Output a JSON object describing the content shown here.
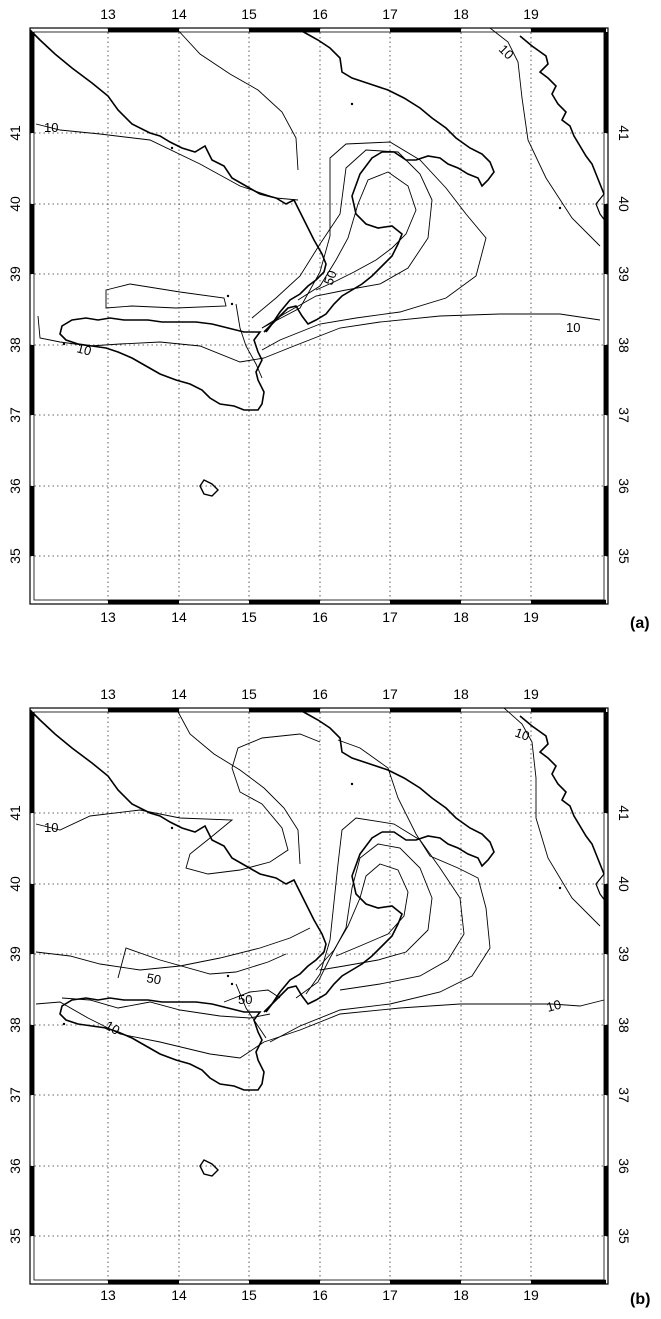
{
  "colors": {
    "ink": "#000000",
    "grid": "#333333",
    "background": "#ffffff"
  },
  "lon_ticks": [
    "13",
    "14",
    "15",
    "16",
    "17",
    "18",
    "19"
  ],
  "lat_ticks": [
    "41",
    "40",
    "39",
    "38",
    "37",
    "36",
    "35"
  ],
  "panels": [
    {
      "panel_label": "(a)",
      "contour_labels": {
        "c10_nw": "10",
        "c10_ne": "10",
        "c10_e": "10",
        "c10_sw": "10",
        "c50": "50"
      }
    },
    {
      "panel_label": "(b)",
      "contour_labels": {
        "c10_nw": "10",
        "c10_ne": "10",
        "c10_e": "10",
        "c10_sw": "10",
        "c50_w": "50",
        "c50_c": "50"
      }
    }
  ]
}
